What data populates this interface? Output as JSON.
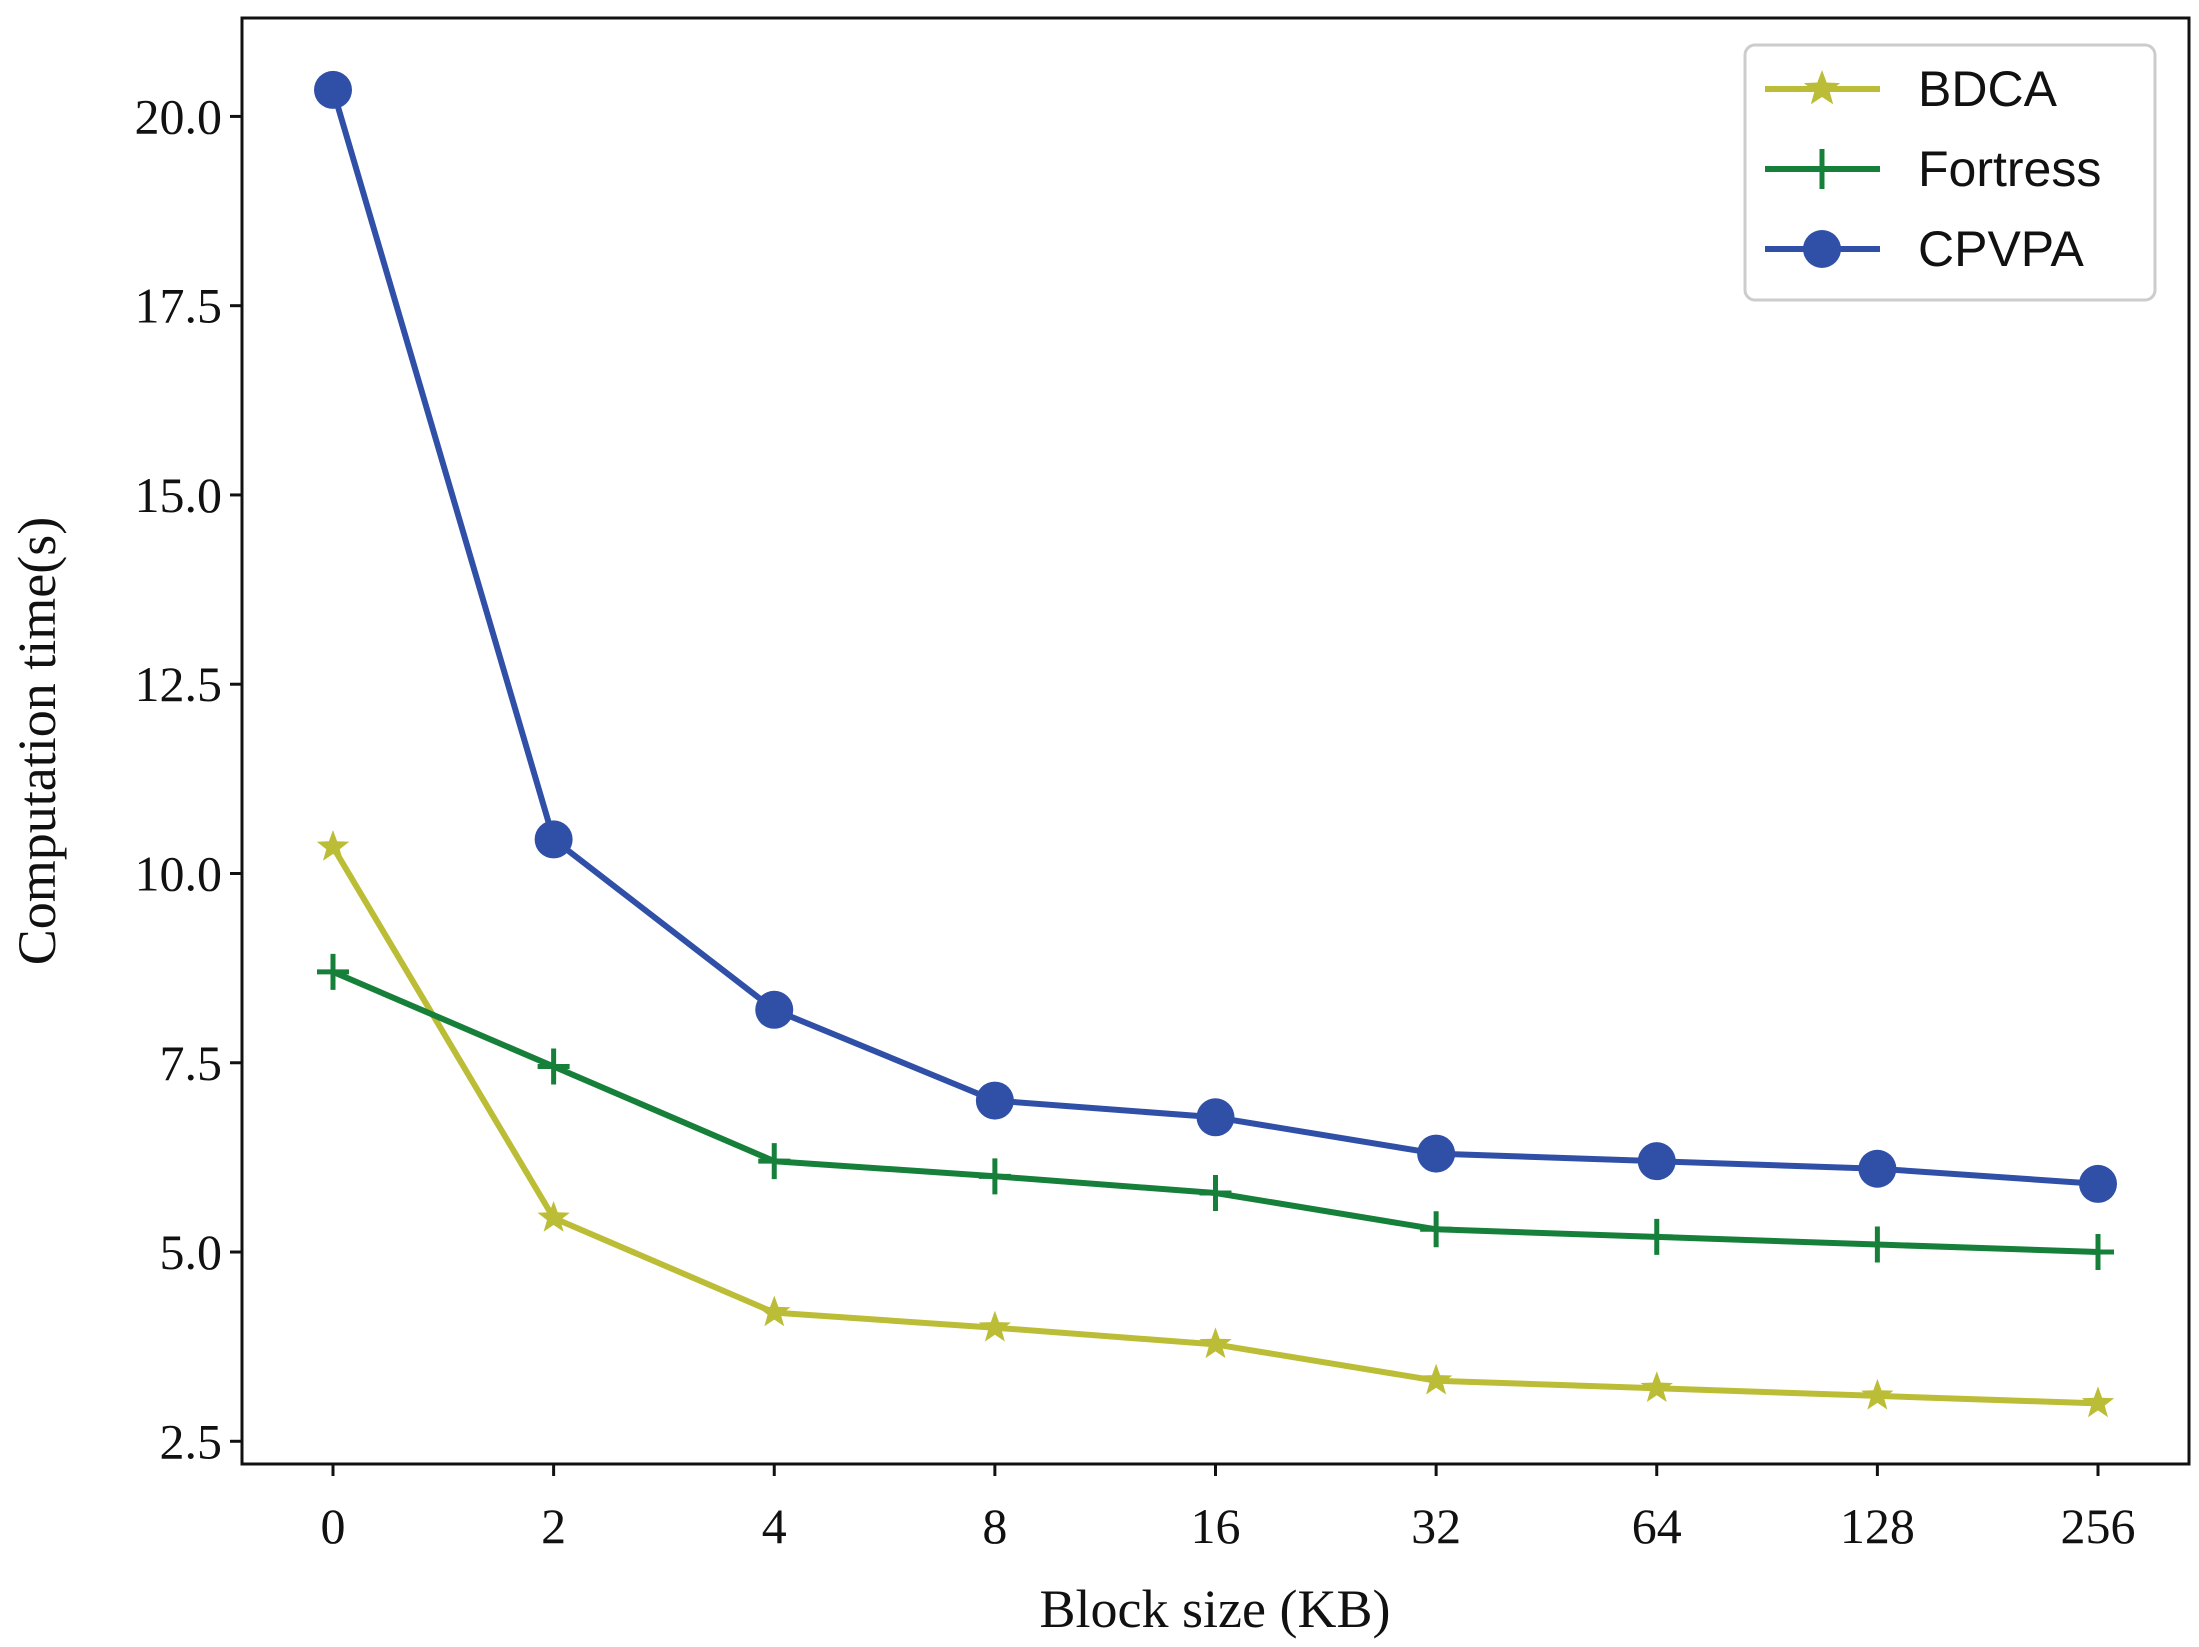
{
  "chart_data": {
    "type": "line",
    "title": "",
    "xlabel": "Block size (KB)",
    "ylabel": "Computation time(s)",
    "categories": [
      "0",
      "2",
      "4",
      "8",
      "16",
      "32",
      "64",
      "128",
      "256"
    ],
    "ylim": [
      2.2,
      21.3
    ],
    "yticks": [
      "2.5",
      "5.0",
      "7.5",
      "10.0",
      "12.5",
      "15.0",
      "17.5",
      "20.0"
    ],
    "grid": false,
    "legend_position": "top-right",
    "series": [
      {
        "name": "BDCA",
        "color": "#bcbd36",
        "marker": "star",
        "values": [
          10.35,
          5.45,
          4.2,
          4.0,
          3.78,
          3.3,
          3.2,
          3.1,
          3.0
        ]
      },
      {
        "name": "Fortress",
        "color": "#16803a",
        "marker": "plus",
        "values": [
          8.7,
          7.45,
          6.2,
          6.0,
          5.78,
          5.3,
          5.2,
          5.1,
          5.0
        ]
      },
      {
        "name": "CPVPA",
        "color": "#3050a8",
        "marker": "circle",
        "values": [
          20.35,
          10.45,
          8.2,
          7.0,
          6.78,
          6.3,
          6.2,
          6.1,
          5.9
        ]
      }
    ]
  }
}
